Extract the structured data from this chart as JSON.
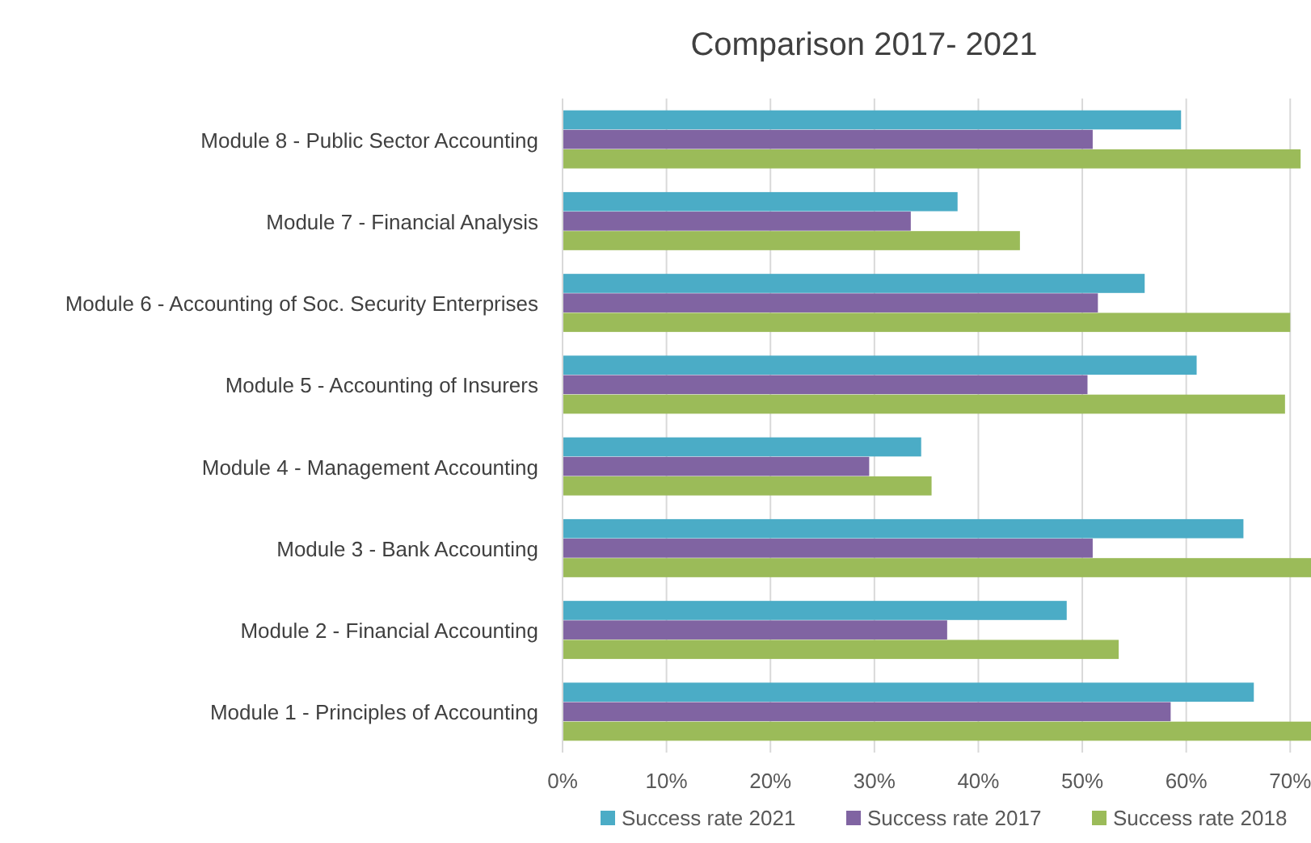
{
  "chart_data": {
    "type": "bar",
    "orientation": "horizontal",
    "title": "Comparison 2017- 2021",
    "categories": [
      "Module 8 - Public Sector Accounting",
      "Module 7 - Financial Analysis",
      "Module 6 - Accounting of Soc. Security Enterprises",
      "Module 5 - Accounting of Insurers",
      "Module 4 - Management Accounting",
      "Module 3 - Bank Accounting",
      "Module 2 - Financial Accounting",
      "Module 1 - Principles of Accounting"
    ],
    "series": [
      {
        "name": "Success rate 2021",
        "color": "#4bacc6",
        "values": [
          59.5,
          38,
          56,
          61,
          34.5,
          65.5,
          48.5,
          66.5
        ]
      },
      {
        "name": "Success rate 2017",
        "color": "#8064a2",
        "values": [
          51,
          33.5,
          51.5,
          50.5,
          29.5,
          51,
          37,
          58.5
        ]
      },
      {
        "name": "Success rate 2018",
        "color": "#9bbb59",
        "values": [
          71,
          44,
          70,
          69.5,
          35.5,
          72,
          53.5,
          72
        ]
      }
    ],
    "xlim": [
      0,
      72
    ],
    "xticks": [
      {
        "value": 0,
        "label": "0%"
      },
      {
        "value": 10,
        "label": "10%"
      },
      {
        "value": 20,
        "label": "20%"
      },
      {
        "value": 30,
        "label": "30%"
      },
      {
        "value": 40,
        "label": "40%"
      },
      {
        "value": 50,
        "label": "50%"
      },
      {
        "value": 60,
        "label": "60%"
      },
      {
        "value": 70,
        "label": "70%"
      }
    ],
    "grid": "x",
    "legend": "bottom"
  }
}
